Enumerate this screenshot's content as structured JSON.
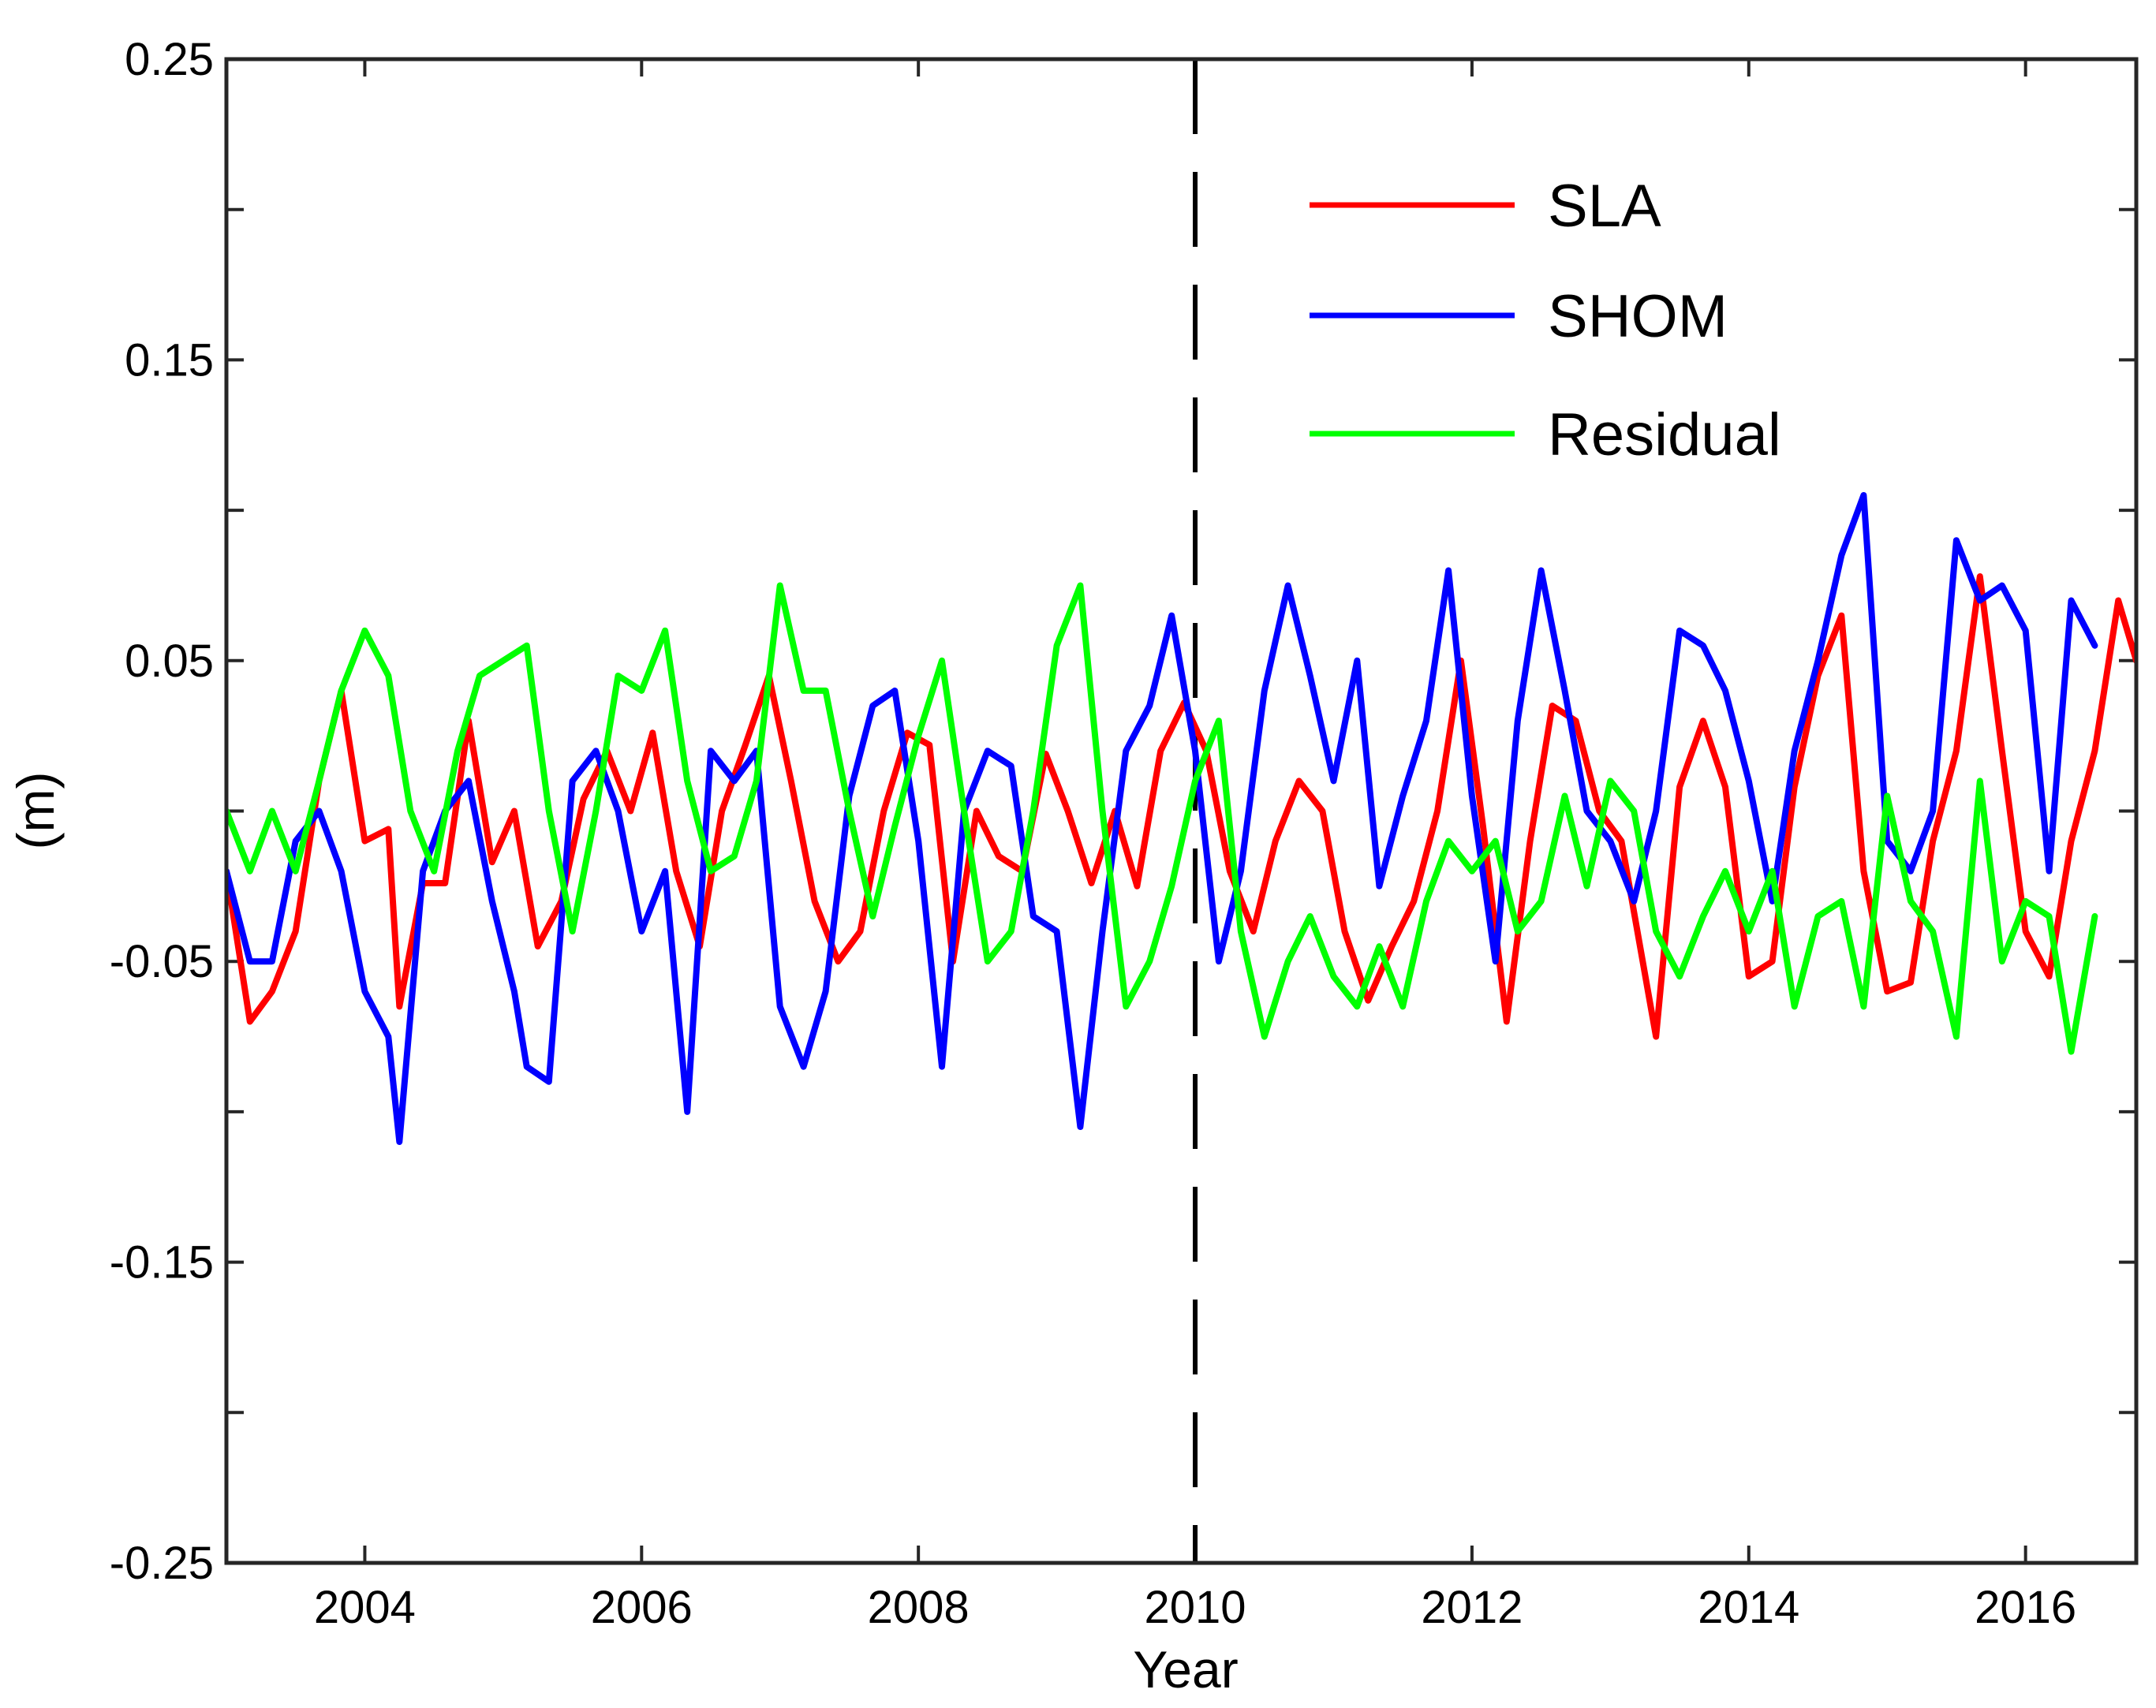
{
  "chart_data": {
    "type": "line",
    "title": "",
    "xlabel": "Year",
    "ylabel": "(m)",
    "xlim": [
      2003.0,
      2016.8
    ],
    "ylim": [
      -0.25,
      0.25
    ],
    "x_ticks": [
      2004,
      2006,
      2008,
      2010,
      2012,
      2014,
      2016
    ],
    "x_tick_labels": [
      "2004",
      "2006",
      "2008",
      "2010",
      "2012",
      "2014",
      "2016"
    ],
    "y_ticks": [
      -0.25,
      -0.2,
      -0.15,
      -0.1,
      -0.05,
      0,
      0.05,
      0.1,
      0.15,
      0.2,
      0.25
    ],
    "y_tick_labels": [
      "-0.25",
      "",
      "-0.15",
      "",
      "-0.05",
      "",
      "0.05",
      "",
      "0.15",
      "",
      "0.25"
    ],
    "grid": false,
    "legend_position": "top-right",
    "annotations": [
      {
        "type": "vertical-dashed-line",
        "x": 2010
      }
    ],
    "series": [
      {
        "name": "SLA",
        "color": "#ff0000",
        "x": [
          2003.0,
          2003.17,
          2003.33,
          2003.5,
          2003.67,
          2003.83,
          2004.0,
          2004.17,
          2004.25,
          2004.42,
          2004.58,
          2004.75,
          2004.92,
          2005.08,
          2005.25,
          2005.42,
          2005.58,
          2005.75,
          2005.92,
          2006.08,
          2006.25,
          2006.42,
          2006.58,
          2006.75,
          2006.92,
          2007.08,
          2007.25,
          2007.42,
          2007.58,
          2007.75,
          2007.92,
          2008.08,
          2008.25,
          2008.42,
          2008.58,
          2008.75,
          2008.92,
          2009.08,
          2009.25,
          2009.42,
          2009.58,
          2009.75,
          2009.92,
          2010.08,
          2010.25,
          2010.42,
          2010.58,
          2010.75,
          2010.92,
          2011.08,
          2011.25,
          2011.42,
          2011.58,
          2011.75,
          2011.92,
          2012.08,
          2012.25,
          2012.42,
          2012.58,
          2012.75,
          2012.92,
          2013.08,
          2013.33,
          2013.5,
          2013.67,
          2013.83,
          2014.0,
          2014.17,
          2014.33,
          2014.5,
          2014.67,
          2014.83,
          2015.0,
          2015.17,
          2015.33,
          2015.5,
          2015.67,
          2015.83,
          2016.0,
          2016.17,
          2016.33,
          2016.5,
          2016.67,
          2016.8
        ],
        "values": [
          -0.02,
          -0.07,
          -0.06,
          -0.04,
          0.01,
          0.04,
          -0.01,
          -0.006,
          -0.065,
          -0.024,
          -0.024,
          0.03,
          -0.017,
          0.0,
          -0.045,
          -0.03,
          0.004,
          0.02,
          0.0,
          0.026,
          -0.02,
          -0.045,
          0.0,
          0.022,
          0.045,
          0.01,
          -0.03,
          -0.05,
          -0.04,
          0.0,
          0.026,
          0.022,
          -0.05,
          0.0,
          -0.015,
          -0.02,
          0.019,
          0.0,
          -0.024,
          0.0,
          -0.025,
          0.02,
          0.036,
          0.02,
          -0.02,
          -0.04,
          -0.01,
          0.01,
          0.0,
          -0.04,
          -0.063,
          -0.045,
          -0.03,
          0.0,
          0.05,
          -0.005,
          -0.07,
          -0.01,
          0.035,
          0.03,
          0.0,
          -0.01,
          -0.075,
          0.008,
          0.03,
          0.008,
          -0.055,
          -0.05,
          0.008,
          0.045,
          0.065,
          -0.02,
          -0.06,
          -0.057,
          -0.01,
          0.02,
          0.078,
          0.02,
          -0.04,
          -0.055,
          -0.01,
          0.02,
          0.07,
          0.05
        ]
      },
      {
        "name": "SHOM",
        "color": "#0000ff",
        "x": [
          2003.0,
          2003.17,
          2003.33,
          2003.5,
          2003.67,
          2003.83,
          2004.0,
          2004.17,
          2004.25,
          2004.42,
          2004.58,
          2004.75,
          2004.92,
          2005.08,
          2005.17,
          2005.33,
          2005.5,
          2005.67,
          2005.83,
          2006.0,
          2006.17,
          2006.33,
          2006.5,
          2006.67,
          2006.83,
          2007.0,
          2007.17,
          2007.33,
          2007.5,
          2007.67,
          2007.83,
          2008.0,
          2008.17,
          2008.33,
          2008.5,
          2008.67,
          2008.83,
          2009.0,
          2009.17,
          2009.33,
          2009.5,
          2009.67,
          2009.83,
          2010.0,
          2010.17,
          2010.33,
          2010.5,
          2010.67,
          2010.83,
          2011.0,
          2011.17,
          2011.33,
          2011.5,
          2011.67,
          2011.83,
          2012.0,
          2012.17,
          2012.33,
          2012.5,
          2012.67,
          2012.83,
          2013.0,
          2013.17,
          2013.33,
          2013.5,
          2013.67,
          2013.83,
          2014.0,
          2014.17,
          2014.33,
          2014.5,
          2014.67,
          2014.83,
          2015.0,
          2015.17,
          2015.33,
          2015.5,
          2015.67,
          2015.83,
          2016.0,
          2016.17,
          2016.33,
          2016.5
        ],
        "values": [
          -0.02,
          -0.05,
          -0.05,
          -0.01,
          0.0,
          -0.02,
          -0.06,
          -0.075,
          -0.11,
          -0.02,
          0.0,
          0.01,
          -0.03,
          -0.06,
          -0.085,
          -0.09,
          0.01,
          0.02,
          0.0,
          -0.04,
          -0.02,
          -0.1,
          0.02,
          0.01,
          0.02,
          -0.065,
          -0.085,
          -0.06,
          0.005,
          0.035,
          0.04,
          -0.01,
          -0.085,
          0.0,
          0.02,
          0.015,
          -0.035,
          -0.04,
          -0.105,
          -0.04,
          0.02,
          0.035,
          0.065,
          0.02,
          -0.05,
          -0.02,
          0.04,
          0.075,
          0.045,
          0.01,
          0.05,
          -0.025,
          0.005,
          0.03,
          0.08,
          0.005,
          -0.05,
          0.03,
          0.08,
          0.04,
          0.0,
          -0.01,
          -0.03,
          0.0,
          0.06,
          0.055,
          0.04,
          0.01,
          -0.03,
          0.02,
          0.05,
          0.085,
          0.105,
          -0.01,
          -0.02,
          0.0,
          0.09,
          0.07,
          0.075,
          0.06,
          -0.02,
          0.07,
          0.055
        ]
      },
      {
        "name": "Residual",
        "color": "#00ff00",
        "x": [
          2003.0,
          2003.17,
          2003.33,
          2003.5,
          2003.67,
          2003.83,
          2004.0,
          2004.17,
          2004.33,
          2004.5,
          2004.67,
          2004.83,
          2005.0,
          2005.17,
          2005.33,
          2005.5,
          2005.67,
          2005.83,
          2006.0,
          2006.17,
          2006.33,
          2006.5,
          2006.67,
          2006.83,
          2007.0,
          2007.17,
          2007.33,
          2007.5,
          2007.67,
          2007.83,
          2008.0,
          2008.17,
          2008.33,
          2008.5,
          2008.67,
          2008.83,
          2009.0,
          2009.17,
          2009.33,
          2009.5,
          2009.67,
          2009.83,
          2010.0,
          2010.17,
          2010.33,
          2010.5,
          2010.67,
          2010.83,
          2011.0,
          2011.17,
          2011.33,
          2011.5,
          2011.67,
          2011.83,
          2012.0,
          2012.17,
          2012.33,
          2012.5,
          2012.67,
          2012.83,
          2013.0,
          2013.17,
          2013.33,
          2013.5,
          2013.67,
          2013.83,
          2014.0,
          2014.17,
          2014.33,
          2014.5,
          2014.67,
          2014.83,
          2015.0,
          2015.17,
          2015.33,
          2015.5,
          2015.67,
          2015.83,
          2016.0,
          2016.17,
          2016.33,
          2016.5
        ],
        "values": [
          0.0,
          -0.02,
          0.0,
          -0.02,
          0.01,
          0.04,
          0.06,
          0.045,
          0.0,
          -0.02,
          0.02,
          0.045,
          0.05,
          0.055,
          0.0,
          -0.04,
          0.0,
          0.045,
          0.04,
          0.06,
          0.01,
          -0.02,
          -0.015,
          0.01,
          0.075,
          0.04,
          0.04,
          0.0,
          -0.035,
          -0.005,
          0.025,
          0.05,
          0.0,
          -0.05,
          -0.04,
          0.0,
          0.055,
          0.075,
          0.0,
          -0.065,
          -0.05,
          -0.025,
          0.01,
          0.03,
          -0.04,
          -0.075,
          -0.05,
          -0.035,
          -0.055,
          -0.065,
          -0.045,
          -0.065,
          -0.03,
          -0.01,
          -0.02,
          -0.01,
          -0.04,
          -0.03,
          0.005,
          -0.025,
          0.01,
          0.0,
          -0.04,
          -0.055,
          -0.035,
          -0.02,
          -0.04,
          -0.02,
          -0.065,
          -0.035,
          -0.03,
          -0.065,
          0.005,
          -0.03,
          -0.04,
          -0.075,
          0.01,
          -0.05,
          -0.03,
          -0.035,
          -0.08,
          -0.035
        ]
      }
    ]
  }
}
